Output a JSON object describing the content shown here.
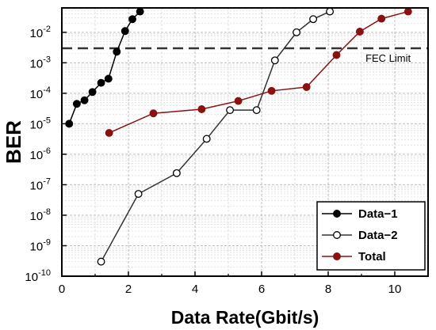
{
  "chart_data": {
    "type": "line",
    "xlabel": "Data Rate(Gbit/s)",
    "ylabel": "BER",
    "xlim": [
      0,
      11
    ],
    "ylim_exp": [
      -10,
      -1.2
    ],
    "y_scale": "log",
    "x_ticks": [
      0,
      2,
      4,
      6,
      8,
      10
    ],
    "y_ticks": [
      {
        "exp": -10,
        "base": "10",
        "sup": "-10"
      },
      {
        "exp": -9,
        "base": "10",
        "sup": "-9"
      },
      {
        "exp": -8,
        "base": "10",
        "sup": "-8"
      },
      {
        "exp": -7,
        "base": "10",
        "sup": "-7"
      },
      {
        "exp": -6,
        "base": "10",
        "sup": "-6"
      },
      {
        "exp": -5,
        "base": "10",
        "sup": "-5"
      },
      {
        "exp": -4,
        "base": "10",
        "sup": "-4"
      },
      {
        "exp": -3,
        "base": "10",
        "sup": "-3"
      },
      {
        "exp": -2,
        "base": "10",
        "sup": "-2"
      }
    ],
    "grid": true,
    "legend_position": "bottom-right",
    "reference_line": {
      "y": 0.003,
      "label": "FEC Limit",
      "color": "#333333"
    },
    "series": [
      {
        "name": "Data−1",
        "color": "#000000",
        "marker": "filled",
        "x": [
          0.22,
          0.45,
          0.68,
          0.92,
          1.18,
          1.4,
          1.65,
          1.9,
          2.12,
          2.35
        ],
        "y": [
          1e-05,
          4.5e-05,
          5.9e-05,
          0.00011,
          0.00022,
          0.0003,
          0.0023,
          0.011,
          0.027,
          0.048
        ]
      },
      {
        "name": "Data−2",
        "color": "#333333",
        "marker": "hollow",
        "x": [
          1.18,
          2.3,
          3.45,
          4.35,
          5.05,
          5.85,
          6.4,
          7.05,
          7.55,
          8.05
        ],
        "y": [
          3e-10,
          5e-08,
          2.4e-07,
          3.2e-06,
          2.8e-05,
          2.8e-05,
          0.0012,
          0.01,
          0.027,
          0.048
        ]
      },
      {
        "name": "Total",
        "color": "#8b1010",
        "marker": "filled",
        "x": [
          1.42,
          2.75,
          4.2,
          5.3,
          6.3,
          7.35,
          8.25,
          8.95,
          9.6,
          10.4
        ],
        "y": [
          5e-06,
          2.2e-05,
          3e-05,
          5.6e-05,
          0.00012,
          0.00016,
          0.0018,
          0.0105,
          0.028,
          0.048
        ]
      }
    ]
  }
}
